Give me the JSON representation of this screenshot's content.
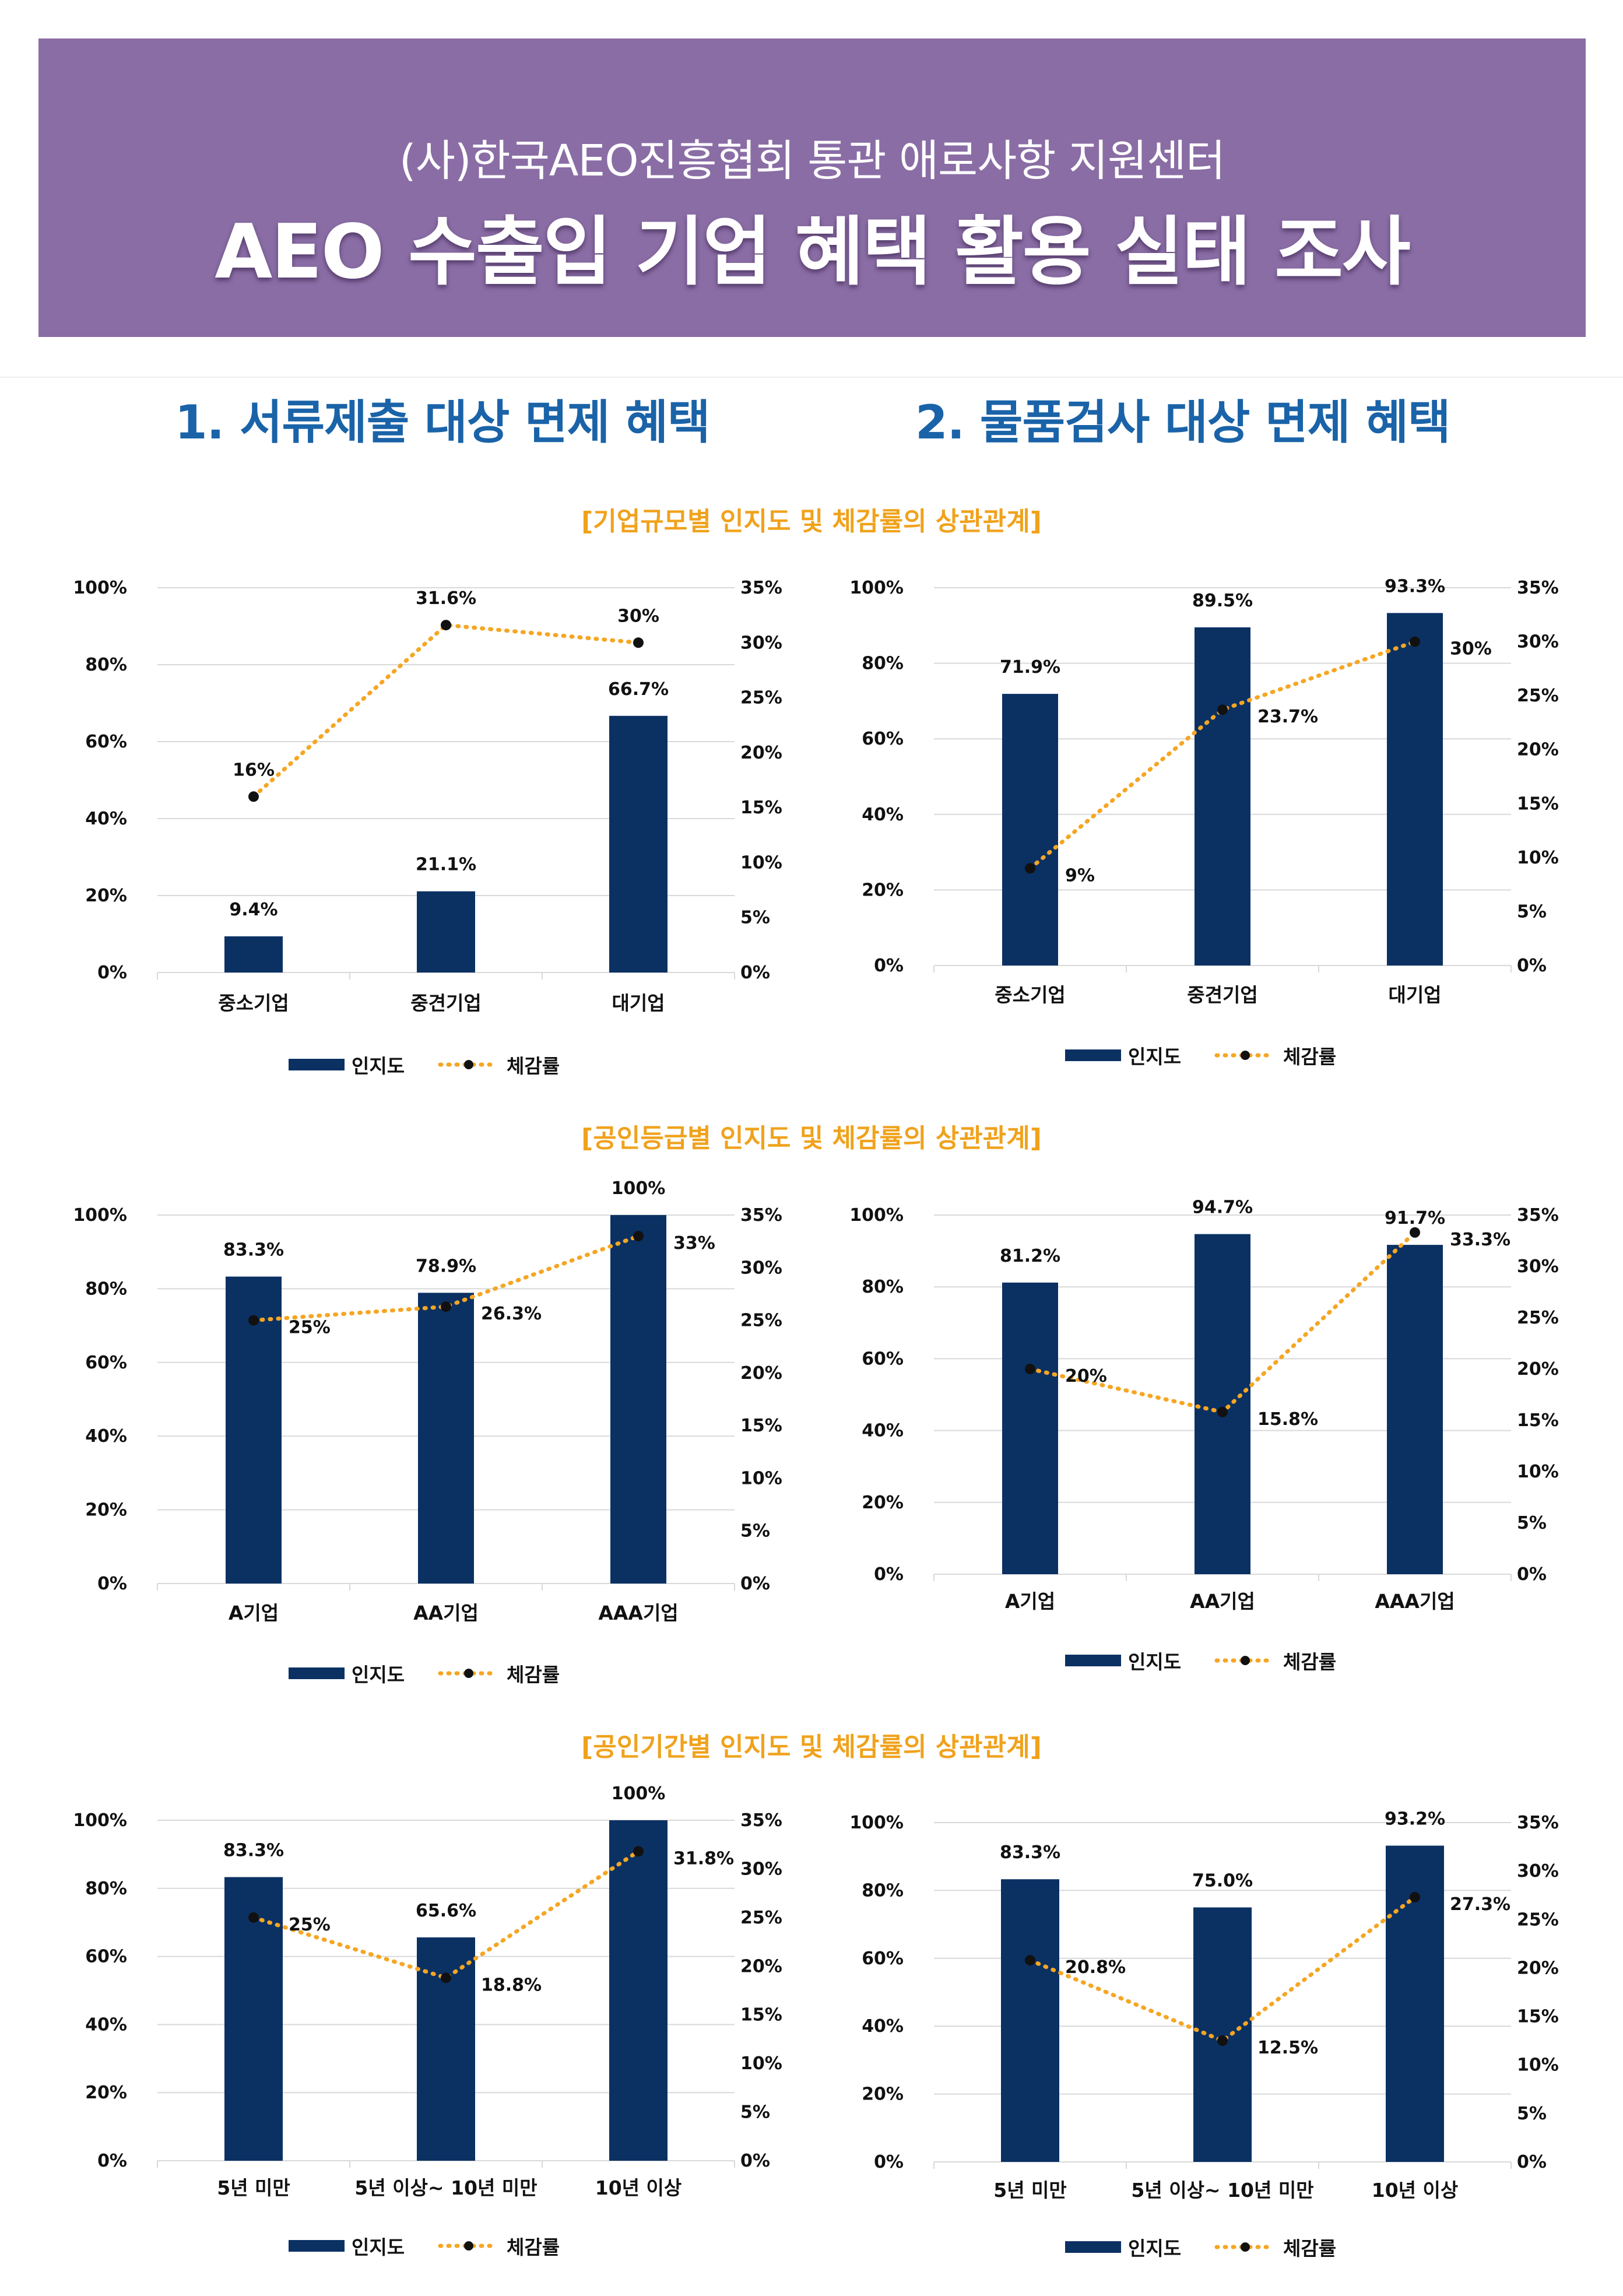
{
  "header": {
    "subtitle": "(사)한국AEO진흥협회 통관 애로사항 지원센터",
    "title": "AEO 수출입 기업 혜택 활용 실태 조사"
  },
  "sections": [
    {
      "title": "1. 서류제출 대상 면제 혜택"
    },
    {
      "title": "2. 물품검사 대상 면제 혜택"
    }
  ],
  "groups": [
    {
      "title": "[기업규모별 인지도 및 체감률의 상관관계]"
    },
    {
      "title": "[공인등급별 인지도 및 체감률의 상관관계]"
    },
    {
      "title": "[공인기간별 인지도 및 체감률의 상관관계]"
    }
  ],
  "colors": {
    "header_bg": "#8a6da5",
    "section_title": "#1a63a8",
    "group_title": "#f0a21c",
    "bar": "#0b3163",
    "line": "#f5a623",
    "marker": "#111111",
    "grid": "#d9d9d9"
  },
  "chart_data": [
    {
      "type": "bar",
      "categories": [
        "중소기업",
        "중견기업",
        "대기업"
      ],
      "series": [
        {
          "name": "인지도",
          "type": "bar",
          "axis": "left",
          "values": [
            9.4,
            21.1,
            66.7
          ],
          "labels": [
            "9.4%",
            "21.1%",
            "66.7%"
          ]
        },
        {
          "name": "체감률",
          "type": "line",
          "axis": "right",
          "values": [
            16,
            31.6,
            30
          ],
          "labels": [
            "16%",
            "31.6%",
            "30%"
          ]
        }
      ],
      "left_axis": {
        "min": 0,
        "max": 100,
        "ticks": [
          "0%",
          "20%",
          "40%",
          "60%",
          "80%",
          "100%"
        ]
      },
      "right_axis": {
        "min": 0,
        "max": 35,
        "ticks": [
          "0%",
          "5%",
          "10%",
          "15%",
          "20%",
          "25%",
          "30%",
          "35%"
        ]
      },
      "legend": [
        "인지도",
        "체감률"
      ]
    },
    {
      "type": "bar",
      "categories": [
        "중소기업",
        "중견기업",
        "대기업"
      ],
      "series": [
        {
          "name": "인지도",
          "type": "bar",
          "axis": "left",
          "values": [
            71.9,
            89.5,
            93.3
          ],
          "labels": [
            "71.9%",
            "89.5%",
            "93.3%"
          ]
        },
        {
          "name": "체감률",
          "type": "line",
          "axis": "right",
          "values": [
            9,
            23.7,
            30
          ],
          "labels": [
            "9%",
            "23.7%",
            "30%"
          ]
        }
      ],
      "left_axis": {
        "min": 0,
        "max": 100,
        "ticks": [
          "0%",
          "20%",
          "40%",
          "60%",
          "80%",
          "100%"
        ]
      },
      "right_axis": {
        "min": 0,
        "max": 35,
        "ticks": [
          "0%",
          "5%",
          "10%",
          "15%",
          "20%",
          "25%",
          "30%",
          "35%"
        ]
      },
      "legend": [
        "인지도",
        "체감률"
      ]
    },
    {
      "type": "bar",
      "categories": [
        "A기업",
        "AA기업",
        "AAA기업"
      ],
      "series": [
        {
          "name": "인지도",
          "type": "bar",
          "axis": "left",
          "values": [
            83.3,
            78.9,
            100
          ],
          "labels": [
            "83.3%",
            "78.9%",
            "100%"
          ]
        },
        {
          "name": "체감률",
          "type": "line",
          "axis": "right",
          "values": [
            25,
            26.3,
            33
          ],
          "labels": [
            "25%",
            "26.3%",
            "33%"
          ]
        }
      ],
      "left_axis": {
        "min": 0,
        "max": 100,
        "ticks": [
          "0%",
          "20%",
          "40%",
          "60%",
          "80%",
          "100%"
        ]
      },
      "right_axis": {
        "min": 0,
        "max": 35,
        "ticks": [
          "0%",
          "5%",
          "10%",
          "15%",
          "20%",
          "25%",
          "30%",
          "35%"
        ]
      },
      "legend": [
        "인지도",
        "체감률"
      ]
    },
    {
      "type": "bar",
      "categories": [
        "A기업",
        "AA기업",
        "AAA기업"
      ],
      "series": [
        {
          "name": "인지도",
          "type": "bar",
          "axis": "left",
          "values": [
            81.2,
            94.7,
            91.7
          ],
          "labels": [
            "81.2%",
            "94.7%",
            "91.7%"
          ]
        },
        {
          "name": "체감률",
          "type": "line",
          "axis": "right",
          "values": [
            20,
            15.8,
            33.3
          ],
          "labels": [
            "20%",
            "15.8%",
            "33.3%"
          ]
        }
      ],
      "left_axis": {
        "min": 0,
        "max": 100,
        "ticks": [
          "0%",
          "20%",
          "40%",
          "60%",
          "80%",
          "100%"
        ]
      },
      "right_axis": {
        "min": 0,
        "max": 35,
        "ticks": [
          "0%",
          "5%",
          "10%",
          "15%",
          "20%",
          "25%",
          "30%",
          "35%"
        ]
      },
      "legend": [
        "인지도",
        "체감률"
      ]
    },
    {
      "type": "bar",
      "categories": [
        "5년 미만",
        "5년 이상~ 10년 미만",
        "10년 이상"
      ],
      "series": [
        {
          "name": "인지도",
          "type": "bar",
          "axis": "left",
          "values": [
            83.3,
            65.6,
            100
          ],
          "labels": [
            "83.3%",
            "65.6%",
            "100%"
          ]
        },
        {
          "name": "체감률",
          "type": "line",
          "axis": "right",
          "values": [
            25,
            18.8,
            31.8
          ],
          "labels": [
            "25%",
            "18.8%",
            "31.8%"
          ]
        }
      ],
      "left_axis": {
        "min": 0,
        "max": 100,
        "ticks": [
          "0%",
          "20%",
          "40%",
          "60%",
          "80%",
          "100%"
        ]
      },
      "right_axis": {
        "min": 0,
        "max": 35,
        "ticks": [
          "0%",
          "5%",
          "10%",
          "15%",
          "20%",
          "25%",
          "30%",
          "35%"
        ]
      },
      "legend": [
        "인지도",
        "체감률"
      ]
    },
    {
      "type": "bar",
      "categories": [
        "5년 미만",
        "5년 이상~ 10년 미만",
        "10년 이상"
      ],
      "series": [
        {
          "name": "인지도",
          "type": "bar",
          "axis": "left",
          "values": [
            83.3,
            75.0,
            93.2
          ],
          "labels": [
            "83.3%",
            "75.0%",
            "93.2%"
          ]
        },
        {
          "name": "체감률",
          "type": "line",
          "axis": "right",
          "values": [
            20.8,
            12.5,
            27.3
          ],
          "labels": [
            "20.8%",
            "12.5%",
            "27.3%"
          ]
        }
      ],
      "left_axis": {
        "min": 0,
        "max": 100,
        "ticks": [
          "0%",
          "20%",
          "40%",
          "60%",
          "80%",
          "100%"
        ]
      },
      "right_axis": {
        "min": 0,
        "max": 35,
        "ticks": [
          "0%",
          "5%",
          "10%",
          "15%",
          "20%",
          "25%",
          "30%",
          "35%"
        ]
      },
      "legend": [
        "인지도",
        "체감률"
      ]
    }
  ]
}
